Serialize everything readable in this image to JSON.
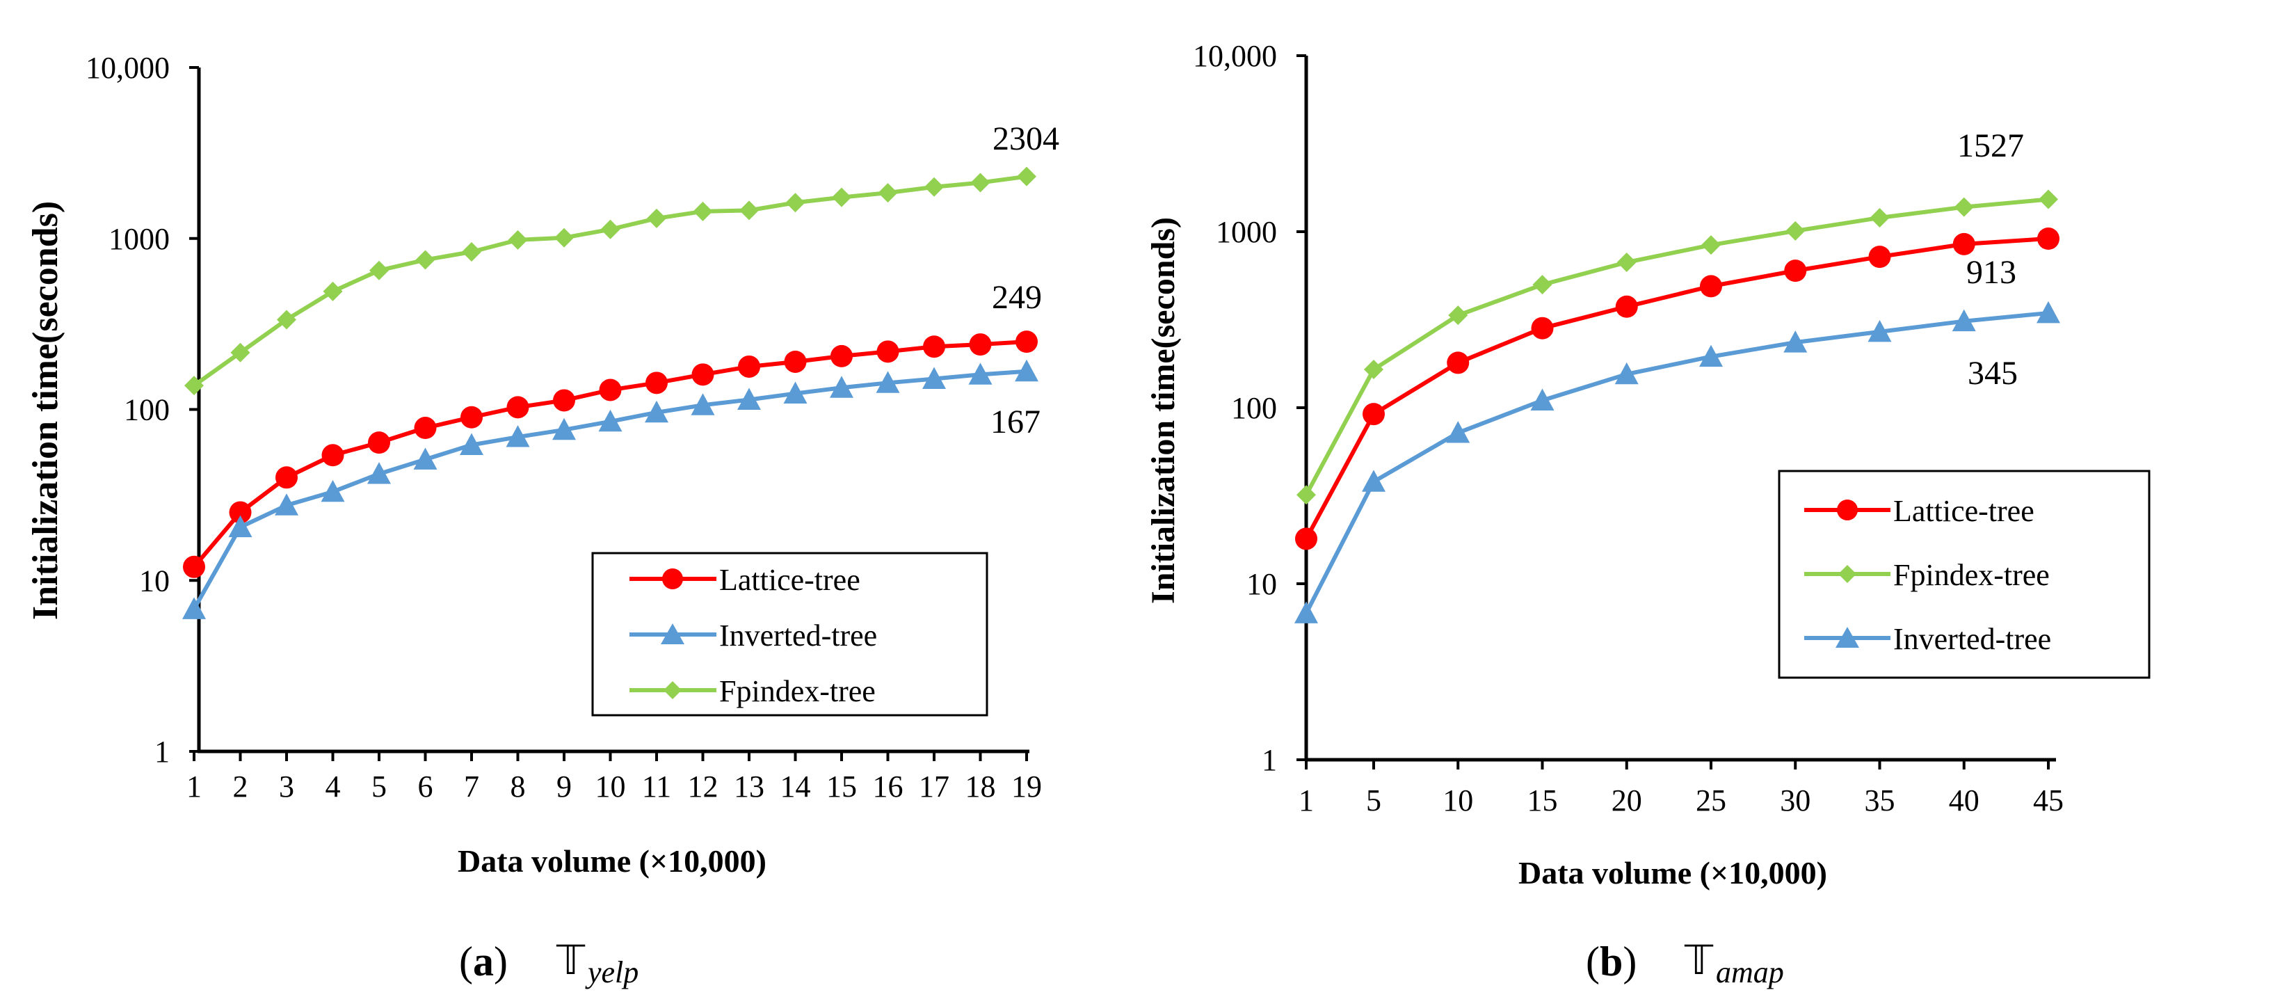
{
  "chart_data": [
    {
      "id": "a",
      "type": "line",
      "yscale": "log",
      "ylim": [
        1,
        10000
      ],
      "xlabel": "Data volume (×10,000)",
      "ylabel": "Initialization time(seconds)",
      "x": [
        1,
        2,
        3,
        4,
        5,
        6,
        7,
        8,
        9,
        10,
        11,
        12,
        13,
        14,
        15,
        16,
        17,
        18,
        19
      ],
      "x_tick_labels": [
        "1",
        "2",
        "3",
        "4",
        "5",
        "6",
        "7",
        "8",
        "9",
        "10",
        "11",
        "12",
        "13",
        "14",
        "15",
        "16",
        "17",
        "18",
        "19"
      ],
      "y_ticks": [
        1,
        10,
        100,
        1000,
        10000
      ],
      "y_tick_labels": [
        "1",
        "10",
        "100",
        "1000",
        "10,000"
      ],
      "series": [
        {
          "name": "Lattice-tree",
          "color": "#ff0000",
          "marker": "circle",
          "values": [
            12,
            25,
            40,
            54,
            64,
            78,
            90,
            103,
            113,
            130,
            143,
            160,
            178,
            190,
            205,
            218,
            233,
            240,
            249
          ]
        },
        {
          "name": "Inverted-tree",
          "color": "#5b9bd5",
          "marker": "triangle",
          "values": [
            6.8,
            20.5,
            27.5,
            33,
            42,
            51,
            62,
            69,
            76,
            85,
            96,
            106,
            114,
            124,
            134,
            143,
            151,
            160,
            167
          ]
        },
        {
          "name": "Fpindex-tree",
          "color": "#92d050",
          "marker": "diamond",
          "values": [
            138,
            215,
            335,
            490,
            650,
            750,
            835,
            980,
            1010,
            1130,
            1310,
            1440,
            1460,
            1620,
            1740,
            1850,
            2000,
            2120,
            2304
          ]
        }
      ],
      "annotations": [
        "2304",
        "249",
        "167"
      ],
      "legend_position": "bottom-right",
      "caption": {
        "letter": "a",
        "symbol": "𝕋",
        "subscript": "yelp"
      }
    },
    {
      "id": "b",
      "type": "line",
      "yscale": "log",
      "ylim": [
        1,
        10000
      ],
      "xlabel": "Data volume (×10,000)",
      "ylabel": "Initialization time(seconds)",
      "x": [
        1,
        5,
        10,
        15,
        20,
        25,
        30,
        35,
        40,
        45
      ],
      "x_tick_labels": [
        "1",
        "5",
        "10",
        "15",
        "20",
        "25",
        "30",
        "35",
        "40",
        "45"
      ],
      "y_ticks": [
        1,
        10,
        100,
        1000,
        10000
      ],
      "y_tick_labels": [
        "1",
        "10",
        "100",
        "1000",
        "10,000"
      ],
      "series": [
        {
          "name": "Lattice-tree",
          "color": "#ff0000",
          "marker": "circle",
          "values": [
            18,
            92,
            180,
            283,
            375,
            490,
            600,
            720,
            850,
            913
          ]
        },
        {
          "name": "Fpindex-tree",
          "color": "#92d050",
          "marker": "diamond",
          "values": [
            32,
            165,
            335,
            500,
            670,
            840,
            1010,
            1200,
            1380,
            1527
          ]
        },
        {
          "name": "Inverted-tree",
          "color": "#5b9bd5",
          "marker": "triangle",
          "values": [
            6.8,
            38,
            72,
            110,
            155,
            195,
            235,
            270,
            310,
            345
          ]
        }
      ],
      "annotations": [
        "1527",
        "913",
        "345"
      ],
      "legend_position": "bottom-right",
      "caption": {
        "letter": "b",
        "symbol": "𝕋",
        "subscript": "amap"
      }
    }
  ]
}
